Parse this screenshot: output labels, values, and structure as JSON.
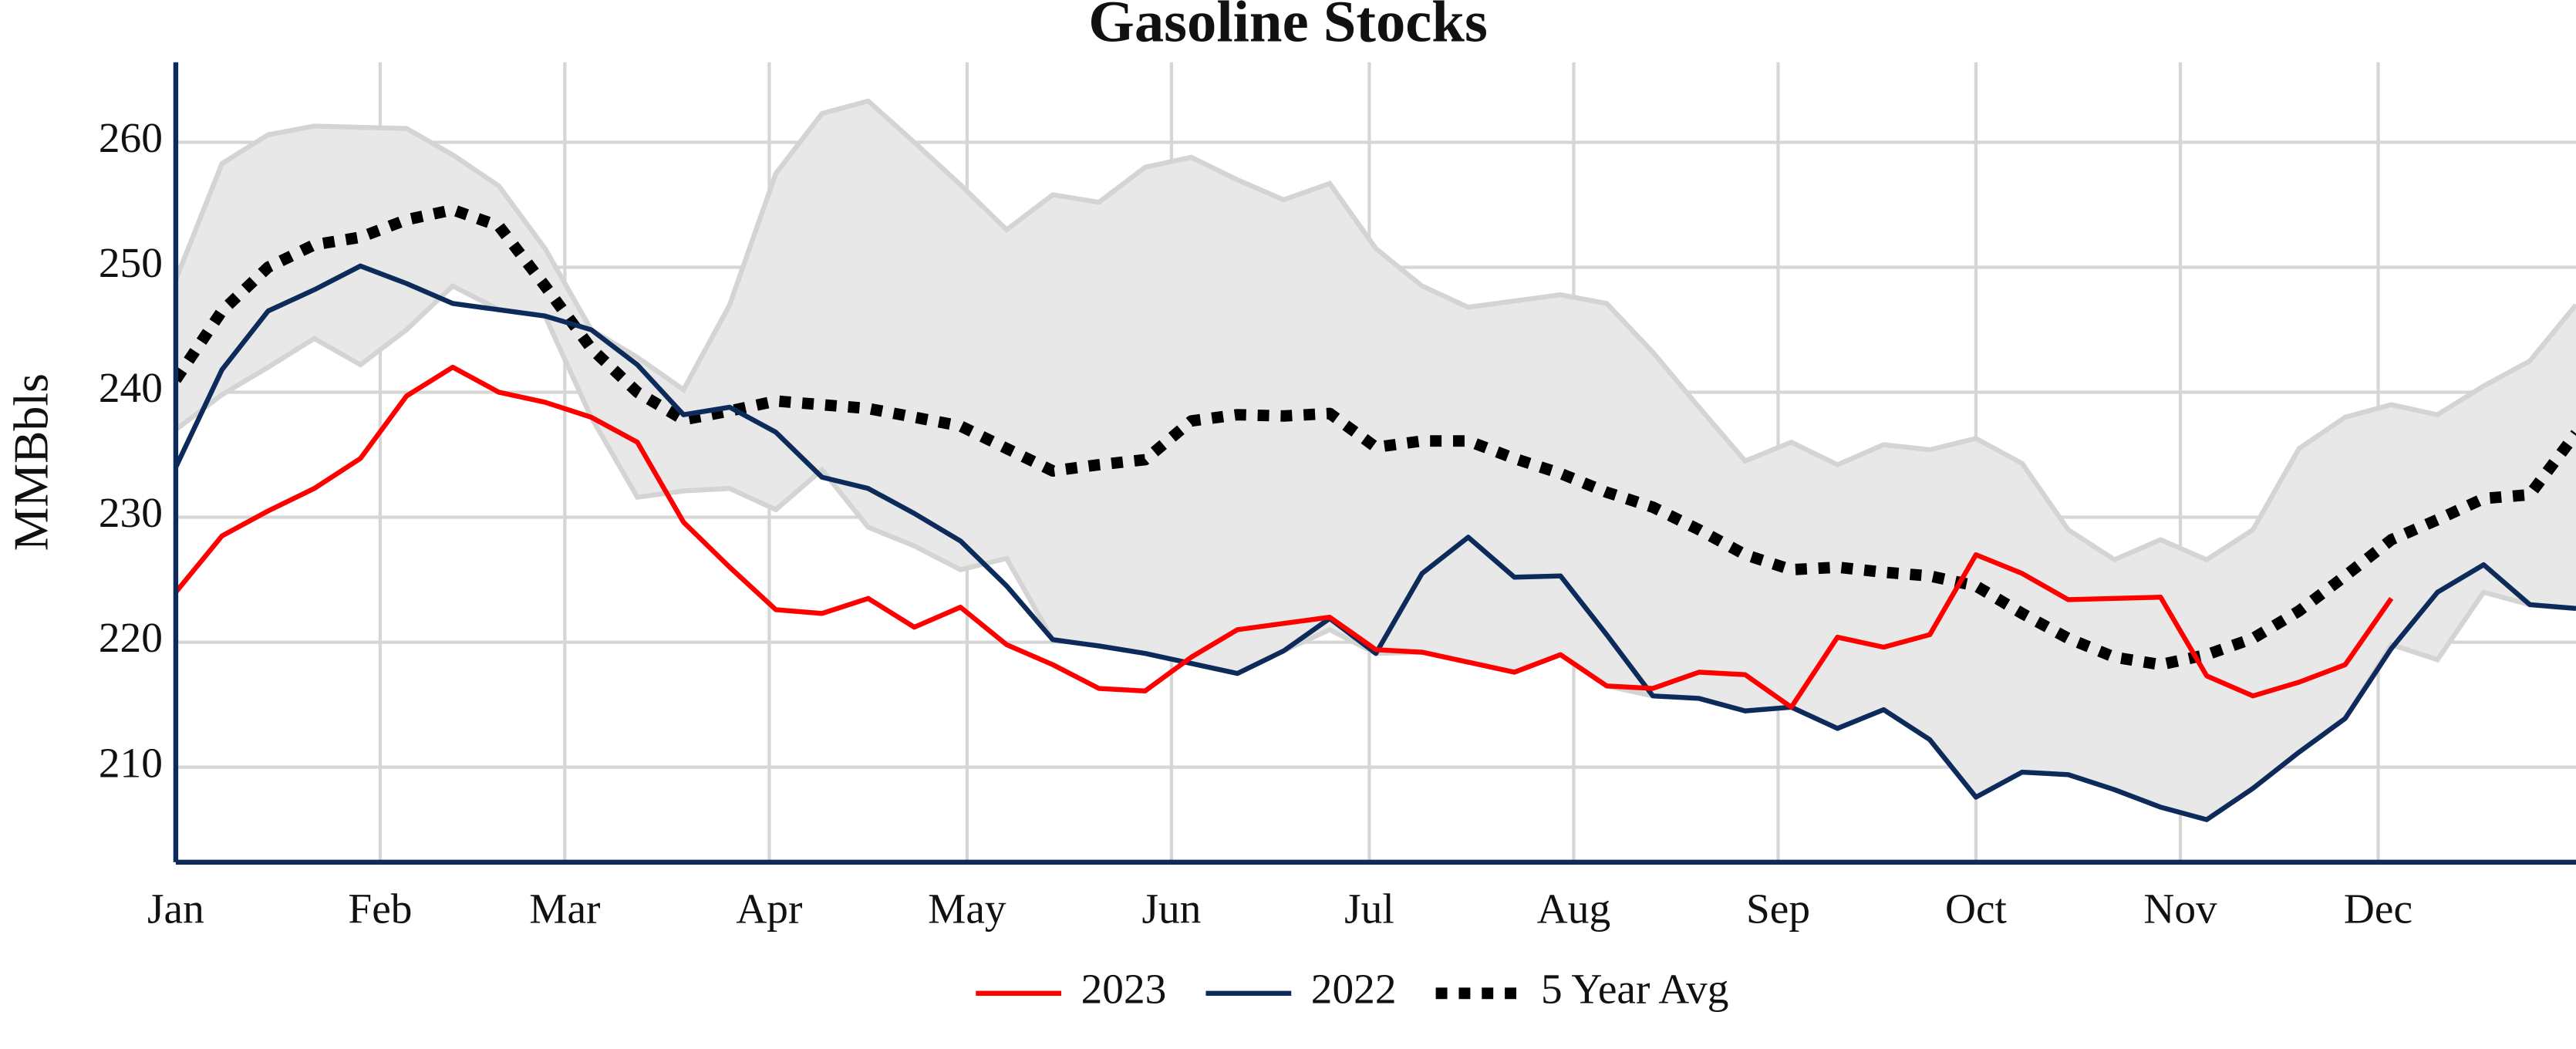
{
  "chart_data": {
    "type": "line",
    "title": "Gasoline Stocks",
    "y_label": "MMBbls",
    "xlim": [
      1,
      365
    ],
    "xticks": [
      {
        "value": 1,
        "label": "Jan"
      },
      {
        "value": 32,
        "label": "Feb"
      },
      {
        "value": 60,
        "label": "Mar"
      },
      {
        "value": 91,
        "label": "Apr"
      },
      {
        "value": 121,
        "label": "May"
      },
      {
        "value": 152,
        "label": "Jun"
      },
      {
        "value": 182,
        "label": "Jul"
      },
      {
        "value": 213,
        "label": "Aug"
      },
      {
        "value": 244,
        "label": "Sep"
      },
      {
        "value": 274,
        "label": "Oct"
      },
      {
        "value": 305,
        "label": "Nov"
      },
      {
        "value": 335,
        "label": "Dec"
      }
    ],
    "ylim": [
      202.4,
      266.4
    ],
    "yticks": [
      210,
      220,
      230,
      240,
      250,
      260
    ],
    "grid": true,
    "legend": "bottom",
    "x": [
      1,
      8,
      15,
      22,
      29,
      36,
      43,
      50,
      57,
      64,
      71,
      78,
      85,
      92,
      99,
      106,
      113,
      120,
      127,
      134,
      141,
      148,
      155,
      162,
      169,
      176,
      183,
      190,
      197,
      204,
      211,
      218,
      225,
      232,
      239,
      246,
      253,
      260,
      267,
      274,
      281,
      288,
      295,
      302,
      309,
      316,
      323,
      330,
      337,
      344,
      351,
      358,
      365
    ],
    "band": {
      "color": "#e8e8e8",
      "edge_color": "#d4d4d4",
      "upper": [
        249,
        258.3,
        260.6,
        261.3,
        261.2,
        261.1,
        259,
        256.5,
        251.5,
        245,
        242.8,
        240.2,
        247,
        257.5,
        262.3,
        263.3,
        260,
        256.6,
        253,
        255.8,
        255.2,
        258,
        258.8,
        257,
        255.4,
        256.7,
        251.5,
        248.5,
        246.8,
        247.3,
        247.8,
        247.1,
        243.2,
        238.8,
        234.5,
        236,
        234.2,
        235.8,
        235.4,
        236.3,
        234.3,
        229,
        226.6,
        228.2,
        226.6,
        229,
        235.5,
        238,
        239,
        238.2,
        240.5,
        242.5,
        247
      ],
      "lower": [
        237,
        239.8,
        242,
        244.3,
        242.2,
        245,
        248.5,
        246.6,
        246.1,
        238,
        231.6,
        232.1,
        232.3,
        230.6,
        233.8,
        229.2,
        227.7,
        225.8,
        226.7,
        220.2,
        219.7,
        219.1,
        218.3,
        217.5,
        219.3,
        221,
        219.1,
        219.2,
        218.4,
        217.6,
        219,
        216.5,
        215.7,
        215.5,
        214.5,
        214.8,
        213.1,
        214.6,
        212.2,
        207.6,
        209.6,
        209.4,
        208.2,
        206.8,
        205.8,
        208.3,
        211.2,
        213.9,
        219.8,
        218.6,
        224,
        223,
        222.7
      ]
    },
    "series": [
      {
        "name": "2023",
        "color": "#ff0000",
        "style": "solid",
        "values": [
          224,
          228.5,
          230.5,
          232.3,
          234.7,
          239.7,
          242,
          240,
          239.2,
          238,
          236,
          229.6,
          226,
          222.6,
          222.3,
          223.5,
          221.2,
          222.8,
          219.8,
          218.2,
          216.3,
          216.1,
          218.8,
          221,
          221.5,
          222,
          219.4,
          219.2,
          218.4,
          217.6,
          219,
          216.5,
          216.3,
          217.6,
          217.4,
          214.8,
          220.4,
          219.6,
          220.6,
          227,
          225.5,
          223.4,
          223.5,
          223.6,
          217.3,
          215.7,
          216.8,
          218.2,
          223.5,
          null,
          null,
          null,
          null
        ]
      },
      {
        "name": "2022",
        "color": "#0d2b5a",
        "style": "solid",
        "values": [
          234,
          241.8,
          246.5,
          248.2,
          250.1,
          248.7,
          247.1,
          246.6,
          246.1,
          245,
          242.2,
          238.2,
          238.8,
          236.8,
          233.2,
          232.3,
          230.3,
          228.1,
          224.5,
          220.2,
          219.7,
          219.1,
          218.3,
          217.5,
          219.3,
          221.9,
          219.1,
          225.5,
          228.4,
          225.2,
          225.3,
          220.6,
          215.7,
          215.5,
          214.5,
          214.8,
          213.1,
          214.6,
          212.2,
          207.6,
          209.6,
          209.4,
          208.2,
          206.8,
          205.8,
          208.3,
          211.2,
          213.9,
          219.5,
          224,
          226.2,
          223,
          222.7
        ]
      },
      {
        "name": "5 Year Avg",
        "color": "#000000",
        "style": "dotted",
        "values": [
          241,
          246.5,
          250,
          251.8,
          252.4,
          253.8,
          254.6,
          253.3,
          248.5,
          243.5,
          240,
          237.8,
          238.5,
          239.3,
          239,
          238.7,
          238,
          237.3,
          235.5,
          233.7,
          234.2,
          234.6,
          237.7,
          238.2,
          238.1,
          238.3,
          235.6,
          236.1,
          236.1,
          234.7,
          233.5,
          232,
          230.8,
          229,
          227,
          225.8,
          226,
          225.6,
          225.3,
          224.5,
          222.3,
          220.3,
          218.8,
          218.2,
          219,
          220.3,
          222.5,
          225.3,
          228.2,
          229.8,
          231.5,
          231.8,
          236.7
        ]
      }
    ]
  }
}
